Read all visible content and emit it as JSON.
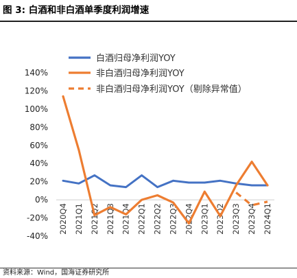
{
  "figure": {
    "title": "图 3:  白酒和非白酒单季度利润增速",
    "source": "资料来源：Wind，国海证券研究所"
  },
  "colors": {
    "baijiu": "#4472C4",
    "non_baijiu": "#ED7D31",
    "non_baijiu_adj": "#ED7D31"
  },
  "chart_data": {
    "type": "line",
    "title": "",
    "xlabel": "",
    "ylabel": "",
    "categories": [
      "2020Q4",
      "2021Q1",
      "2021Q2",
      "2021Q3",
      "2021Q4",
      "2022Q1",
      "2022Q2",
      "2022Q3",
      "2022Q4",
      "2023Q1",
      "2023Q2",
      "2023Q3",
      "2023Q4",
      "2024Q1"
    ],
    "ylim": [
      -40,
      140
    ],
    "yticks": [
      -40,
      -20,
      0,
      20,
      40,
      60,
      80,
      100,
      120,
      140
    ],
    "ytick_labels": [
      "-40%",
      "-20%",
      "0%",
      "20%",
      "40%",
      "60%",
      "80%",
      "100%",
      "120%",
      "140%"
    ],
    "grid": false,
    "legend_position": "top-left",
    "series": [
      {
        "name": "白酒归母净利润YOY",
        "style": "solid",
        "values": [
          21,
          18,
          27,
          16,
          14,
          27,
          14,
          21,
          19,
          19,
          21,
          18,
          16,
          16
        ]
      },
      {
        "name": "非白酒归母净利润YOY",
        "style": "solid",
        "values": [
          114,
          55,
          -17,
          -8,
          -16,
          0,
          5,
          -3,
          -26,
          9,
          -18,
          16,
          42,
          16
        ]
      },
      {
        "name": "非白酒归母净利润YOY（剔除异常值）",
        "style": "dashed",
        "values": [
          null,
          null,
          null,
          null,
          null,
          null,
          null,
          null,
          null,
          null,
          null,
          8,
          -6,
          -2
        ]
      }
    ]
  }
}
